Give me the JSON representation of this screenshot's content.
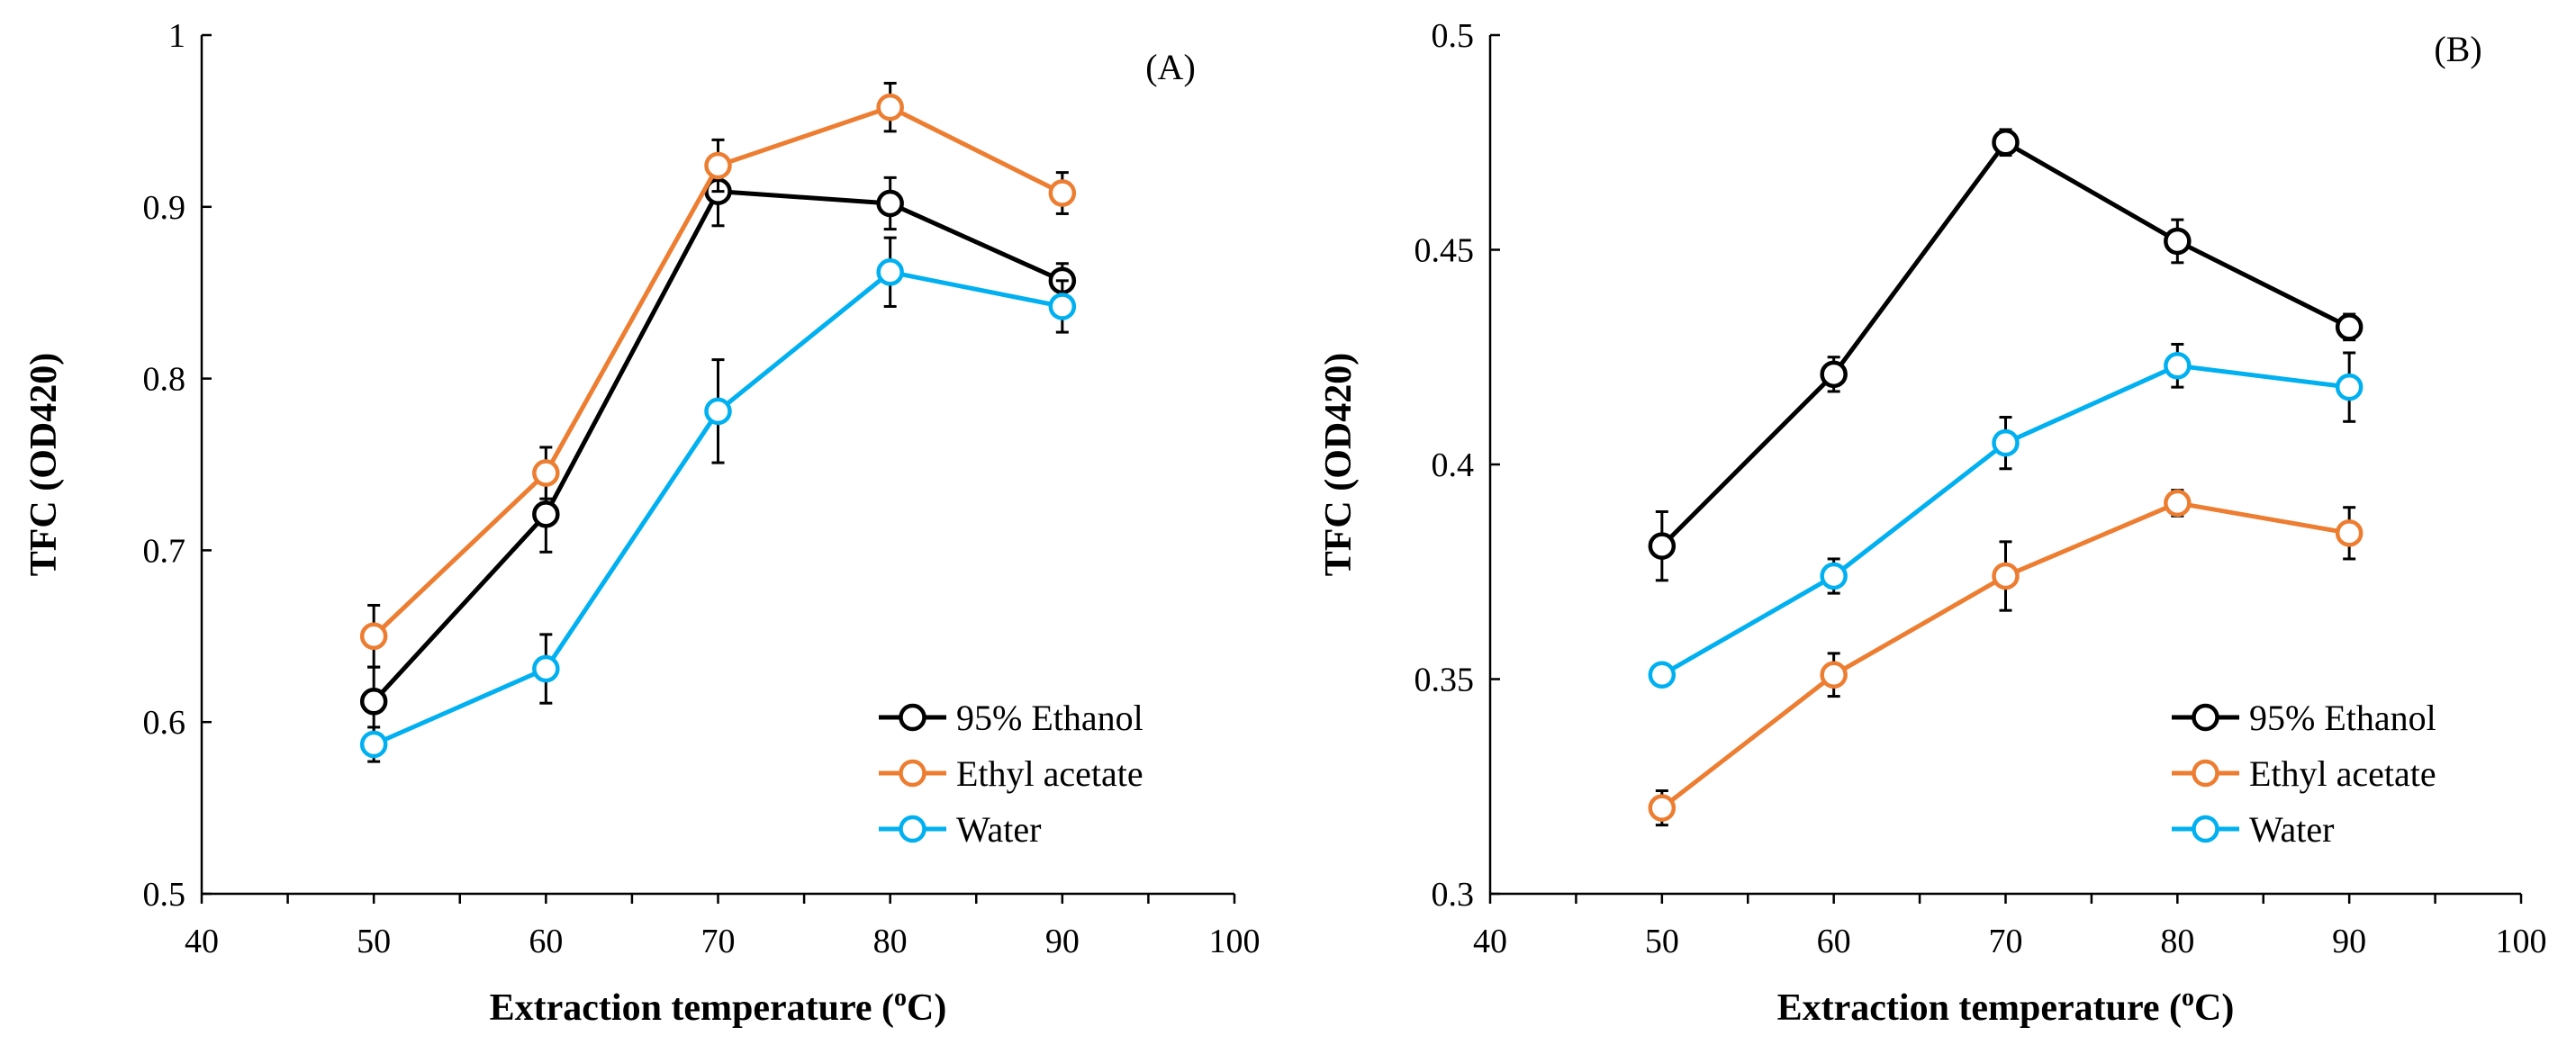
{
  "figure": {
    "title": "TFC vs extraction temperature, panels A and B"
  },
  "colors": {
    "black": "#000000",
    "orange": "#ED7D31",
    "blue": "#00B0F0"
  },
  "chart_data": [
    {
      "type": "line",
      "panel_label": "(A)",
      "xlabel_main": "Extraction temperature (",
      "xlabel_sup": "o",
      "xlabel_end": "C)",
      "ylabel": "TFC (OD420)",
      "xlim": [
        40,
        100
      ],
      "ylim": [
        0.5,
        1
      ],
      "x_ticks": [
        40,
        50,
        60,
        70,
        80,
        90,
        100
      ],
      "y_ticks": [
        0.5,
        0.6,
        0.7,
        0.8,
        0.9,
        1
      ],
      "y_tick_labels": [
        "0.5",
        "0.6",
        "0.7",
        "0.8",
        "0.9",
        "1"
      ],
      "x": [
        50,
        60,
        70,
        80,
        90
      ],
      "legend_position": "bottom-right",
      "series": [
        {
          "name": "95% Ethanol",
          "color": "#000000",
          "values": [
            0.612,
            0.721,
            0.909,
            0.902,
            0.857
          ],
          "errors": [
            0.02,
            0.022,
            0.02,
            0.015,
            0.01
          ]
        },
        {
          "name": "Ethyl acetate",
          "color": "#ED7D31",
          "values": [
            0.65,
            0.745,
            0.924,
            0.958,
            0.908
          ],
          "errors": [
            0.018,
            0.015,
            0.015,
            0.014,
            0.012
          ]
        },
        {
          "name": "Water",
          "color": "#00B0F0",
          "values": [
            0.587,
            0.631,
            0.781,
            0.862,
            0.842
          ],
          "errors": [
            0.01,
            0.02,
            0.03,
            0.02,
            0.015
          ]
        }
      ]
    },
    {
      "type": "line",
      "panel_label": "(B)",
      "xlabel_main": "Extraction temperature (",
      "xlabel_sup": "o",
      "xlabel_end": "C)",
      "ylabel": "TFC (OD420)",
      "xlim": [
        40,
        100
      ],
      "ylim": [
        0.3,
        0.5
      ],
      "x_ticks": [
        40,
        50,
        60,
        70,
        80,
        90,
        100
      ],
      "y_ticks": [
        0.3,
        0.35,
        0.4,
        0.45,
        0.5
      ],
      "y_tick_labels": [
        "0.3",
        "0.35",
        "0.4",
        "0.45",
        "0.5"
      ],
      "x": [
        50,
        60,
        70,
        80,
        90
      ],
      "legend_position": "bottom-right",
      "series": [
        {
          "name": "95% Ethanol",
          "color": "#000000",
          "values": [
            0.381,
            0.421,
            0.475,
            0.452,
            0.432
          ],
          "errors": [
            0.008,
            0.004,
            0.003,
            0.005,
            0.003
          ]
        },
        {
          "name": "Ethyl acetate",
          "color": "#ED7D31",
          "values": [
            0.32,
            0.351,
            0.374,
            0.391,
            0.384
          ],
          "errors": [
            0.004,
            0.005,
            0.008,
            0.003,
            0.006
          ]
        },
        {
          "name": "Water",
          "color": "#00B0F0",
          "values": [
            0.351,
            0.374,
            0.405,
            0.423,
            0.418
          ],
          "errors": [
            0.002,
            0.004,
            0.006,
            0.005,
            0.008
          ]
        }
      ]
    }
  ]
}
